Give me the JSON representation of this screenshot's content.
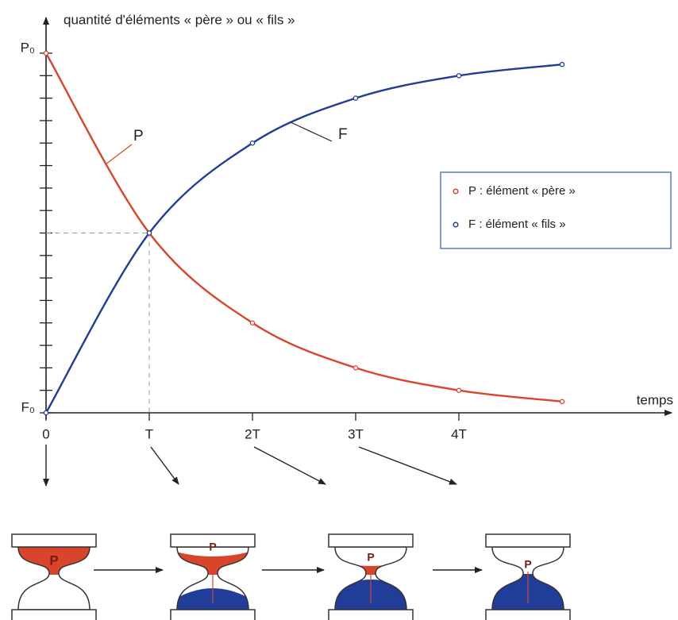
{
  "chart_data": {
    "type": "line",
    "y_axis_label": "quantité d'éléments « père » ou « fils »",
    "x_axis_label": "temps",
    "x": [
      0,
      1,
      2,
      3,
      4,
      5
    ],
    "series": [
      {
        "name": "P : élément « père »",
        "label": "P",
        "color": "#d9452b",
        "values": [
          1,
          0.5,
          0.25,
          0.125,
          0.0625,
          0.03125
        ]
      },
      {
        "name": "F : élément « fils »",
        "label": "F",
        "color": "#1f3d99",
        "values": [
          0,
          0.5,
          0.75,
          0.875,
          0.9375,
          0.96875
        ]
      }
    ],
    "xlim": [
      0,
      6
    ],
    "ylim": [
      0,
      1
    ],
    "xticks": [
      0,
      {
        "value": 1,
        "label": "T"
      },
      {
        "value": 2,
        "label": "2T"
      },
      {
        "value": 3,
        "label": "3T"
      },
      {
        "value": 4,
        "label": "4T"
      }
    ],
    "yticks": [
      {
        "value": 0,
        "label": "F₀"
      },
      {
        "value": 1,
        "label": "P₀"
      }
    ],
    "yminor_ticks": [
      0.0625,
      0.125,
      0.1875,
      0.25,
      0.3125,
      0.375,
      0.4375,
      0.5,
      0.5625,
      0.625,
      0.6875,
      0.75,
      0.8125,
      0.875,
      0.9375
    ],
    "legend": "right"
  },
  "hourglasses": {
    "labels": [
      "P",
      "P",
      "P",
      "P"
    ]
  }
}
